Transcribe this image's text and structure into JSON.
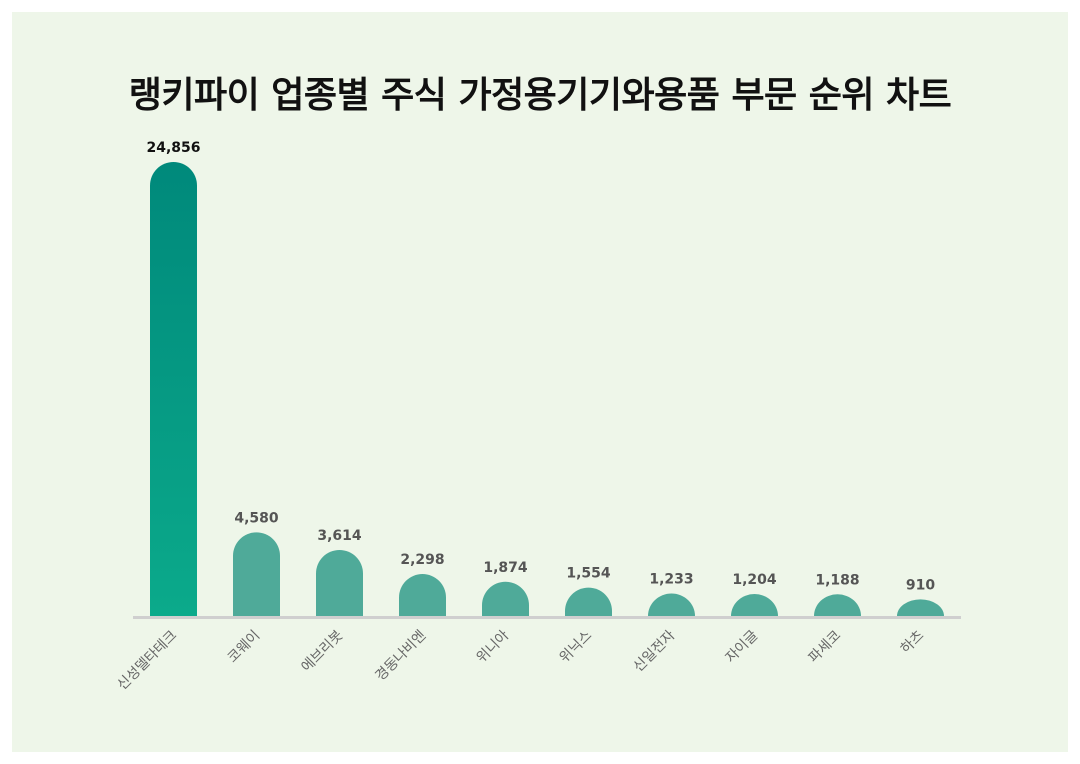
{
  "colors": {
    "background": "#eef6e9",
    "bar_top": "#00897b",
    "bar_first_bottom": "#0baa8b",
    "bar_other": "#4faa99",
    "baseline": "#cfcfcf",
    "label_first": "#111111",
    "label_other": "#555555",
    "tick": "#666666"
  },
  "chart_data": {
    "type": "bar",
    "title": "랭키파이 업종별 주식 가정용기기와용품 부문 순위 차트",
    "categories": [
      "신성델타테크",
      "코웨이",
      "에브리봇",
      "경동나비엔",
      "위니아",
      "위닉스",
      "신일전자",
      "자이글",
      "파세코",
      "하츠"
    ],
    "values": [
      24856,
      4580,
      3614,
      2298,
      1874,
      1554,
      1233,
      1204,
      1188,
      910
    ],
    "value_labels": [
      "24,856",
      "4,580",
      "3,614",
      "2,298",
      "1,874",
      "1,554",
      "1,233",
      "1,204",
      "1,188",
      "910"
    ],
    "ylim": [
      0,
      24856
    ],
    "grid": false,
    "legend": "none",
    "xlabel": "",
    "ylabel": ""
  }
}
